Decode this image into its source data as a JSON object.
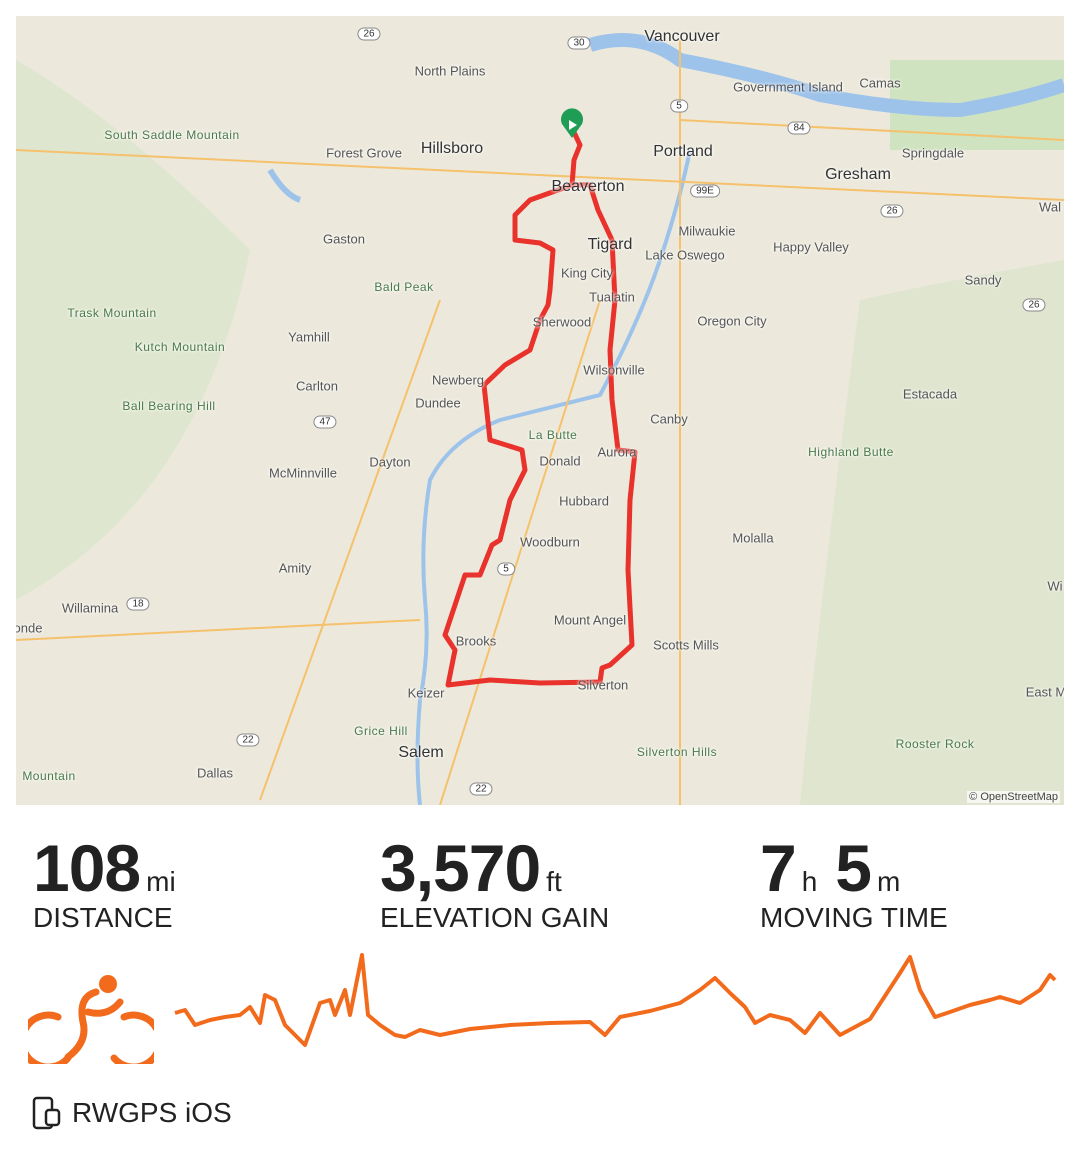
{
  "map": {
    "attribution": "© OpenStreetMap",
    "cities": [
      "Vancouver",
      "Portland",
      "Hillsboro",
      "Beaverton",
      "Gresham",
      "Tigard",
      "Salem",
      "Keizer",
      "Silverton",
      "Woodburn",
      "Newberg",
      "Sherwood",
      "Wilsonville",
      "Aurora",
      "McMinnville",
      "Dayton",
      "Dundee",
      "Carlton",
      "Yamhill",
      "Gaston",
      "Forest Grove",
      "North Plains",
      "Camas",
      "Government Island",
      "Springdale",
      "Milwaukie",
      "Lake Oswego",
      "Happy Valley",
      "King City",
      "Tualatin",
      "Oregon City",
      "Sandy",
      "Estacada",
      "Canby",
      "Donald",
      "Hubbard",
      "Molalla",
      "Mount Angel",
      "Scotts Mills",
      "Brooks",
      "Amity",
      "Willamina",
      "Dallas",
      "Wal",
      "onde",
      "East M",
      "Wi"
    ],
    "peaks": [
      "South Saddle Mountain",
      "Bald Peak",
      "Trask Mountain",
      "Kutch Mountain",
      "Ball Bearing Hill",
      "La Butte",
      "Highland Butte",
      "Grice Hill",
      "Silverton Hills",
      "Rooster Rock",
      "Mountain"
    ],
    "shields": [
      "26",
      "30",
      "5",
      "84",
      "99E",
      "26",
      "26",
      "47",
      "5",
      "18",
      "22",
      "22"
    ],
    "route_color": "#e8322b",
    "start_marker_color": "#1f9d55"
  },
  "stats": {
    "distance": {
      "value": "108",
      "unit": "mi",
      "label": "DISTANCE"
    },
    "elevation": {
      "value": "3,570",
      "unit": "ft",
      "label": "ELEVATION GAIN"
    },
    "time": {
      "hours": "7",
      "h_unit": "h",
      "minutes": "5",
      "m_unit": "m",
      "label": "MOVING TIME"
    }
  },
  "activity": {
    "type_icon": "cycling-icon",
    "color": "#f26b1d"
  },
  "footer": {
    "device_icon": "phone-watch-icon",
    "source": "RWGPS iOS"
  }
}
